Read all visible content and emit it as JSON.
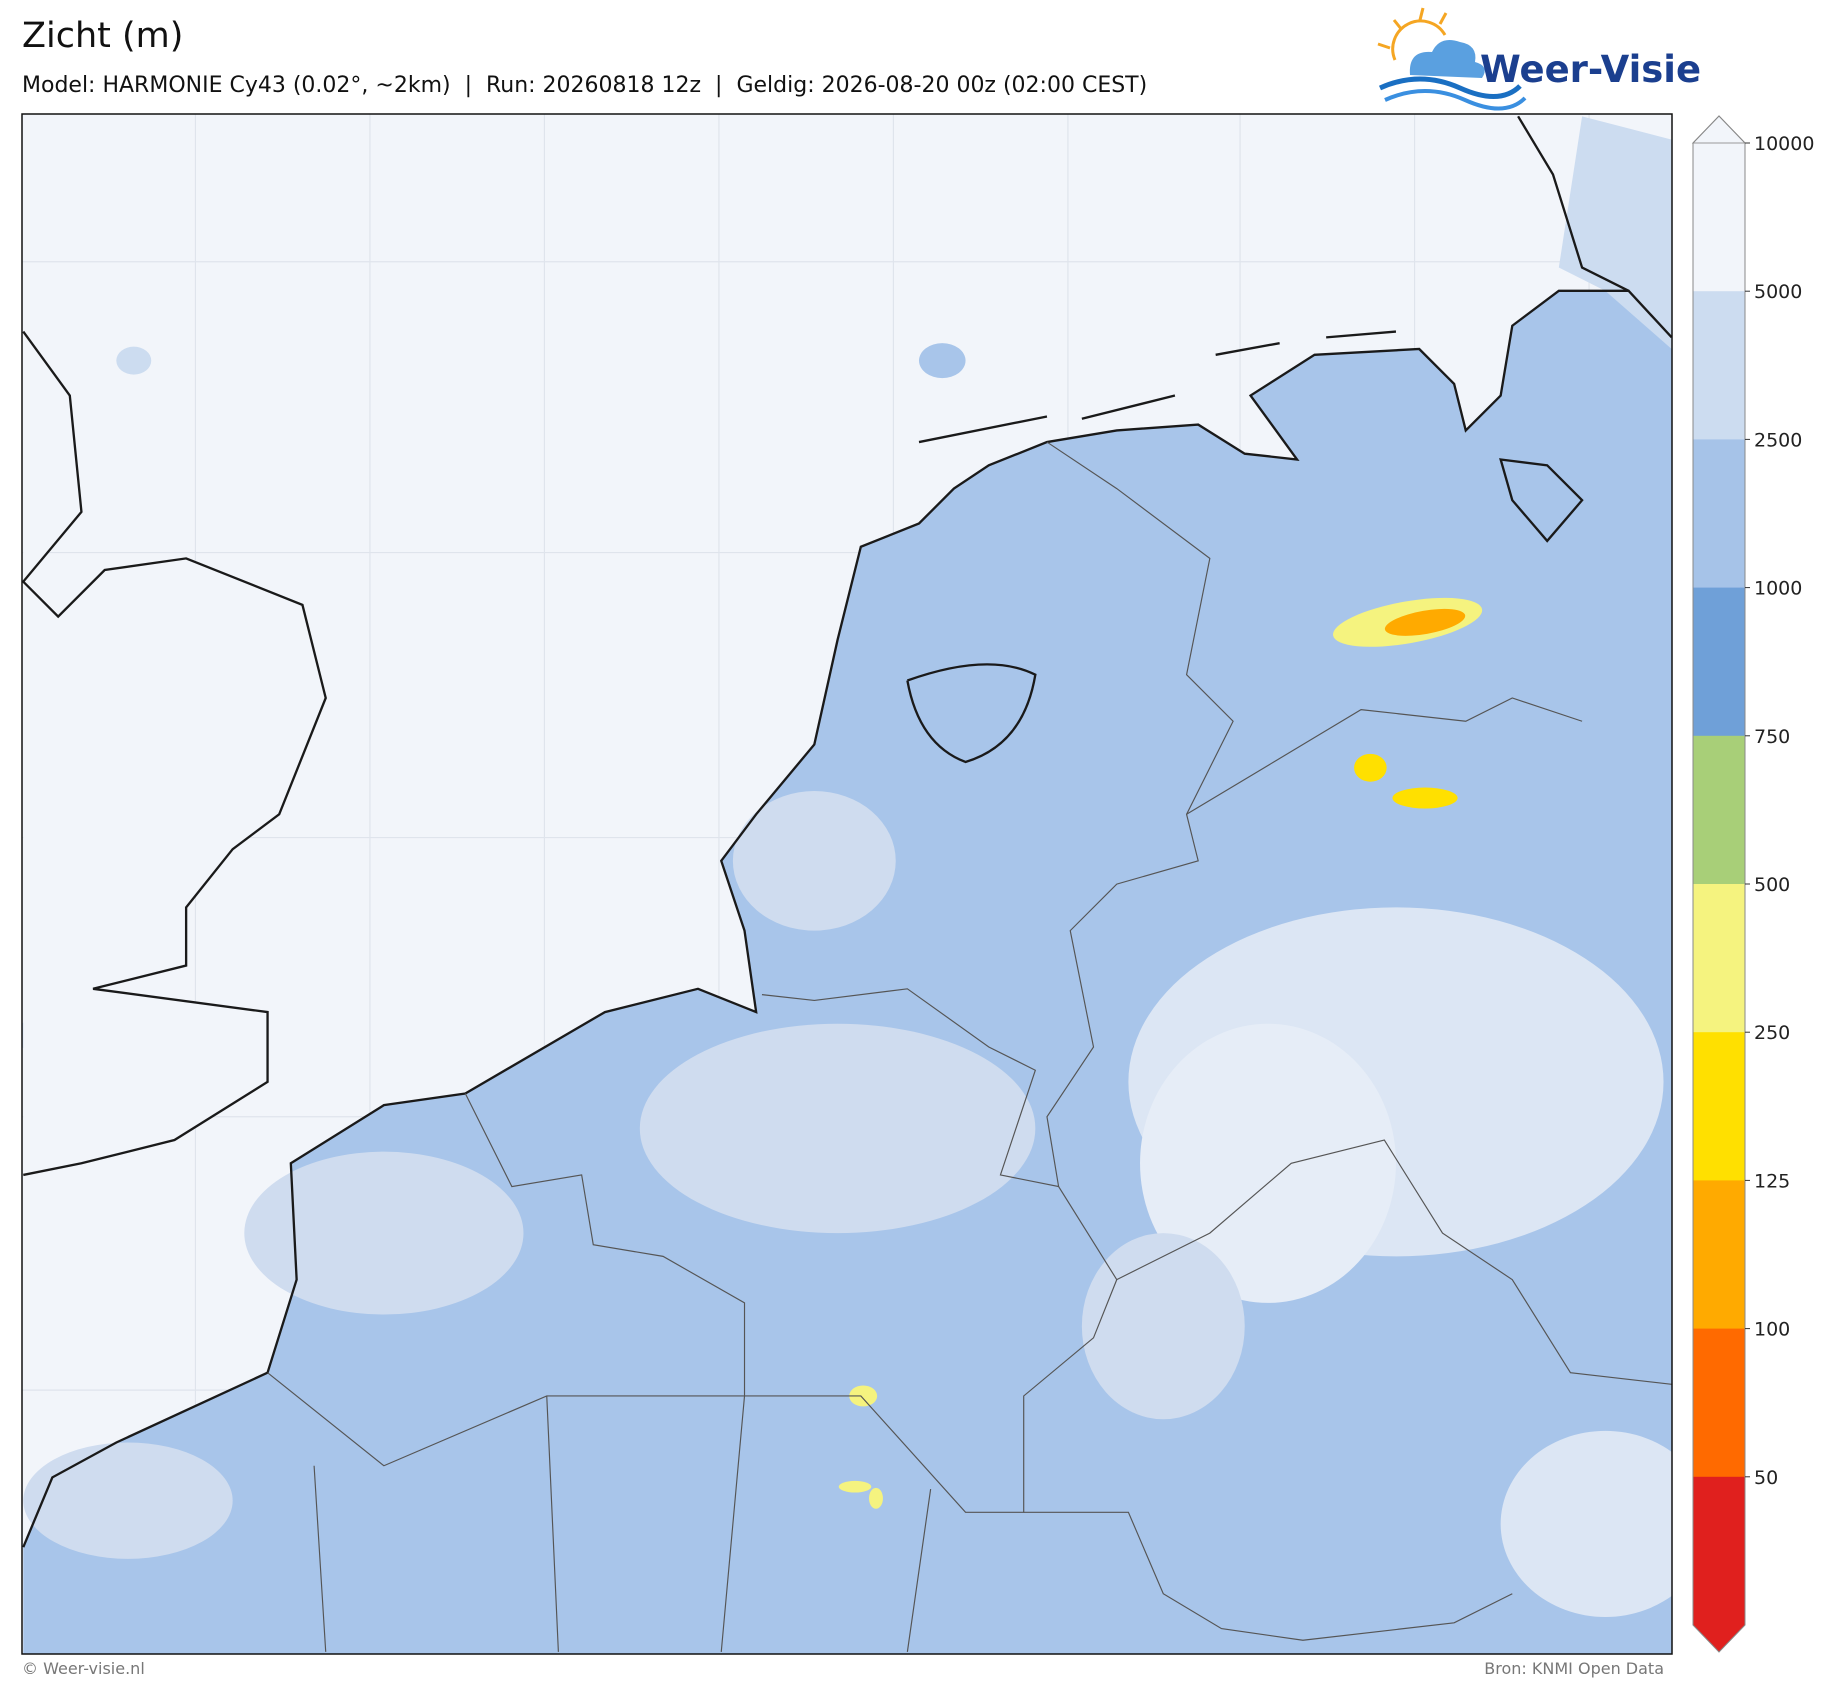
{
  "header": {
    "title": "Zicht (m)",
    "subtitle": "Model: HARMONIE Cy43 (0.02°, ~2km)  |  Run: 20260818 12z  |  Geldig: 2026-08-20 00z (02:00 CEST)",
    "logo": "Weer-Visie"
  },
  "colorbar": {
    "ticks": [
      10000,
      5000,
      2500,
      1000,
      750,
      500,
      250,
      125,
      100,
      50
    ],
    "colors": [
      "#f2f5fa",
      "#ccdcf0",
      "#a6c3e8",
      "#6fa0d8",
      "#a8cf78",
      "#f5f37f",
      "#ffe000",
      "#ffaa00",
      "#ff6a00",
      "#e0201e"
    ]
  },
  "footer": {
    "left": "© Weer-visie.nl",
    "right": "Bron: KNMI Open Data"
  }
}
